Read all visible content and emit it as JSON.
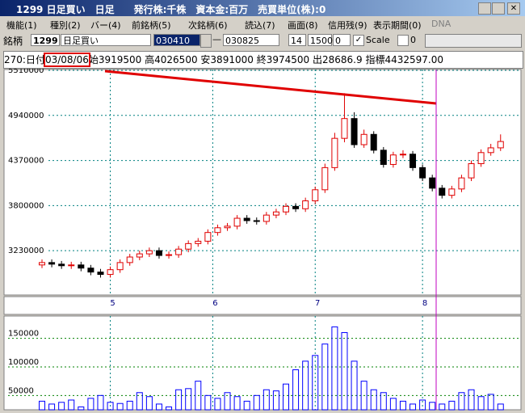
{
  "title": "1299 日足買い　日足　　発行株:千株　資本金:百万　売買単位(株):0",
  "menu": [
    "機能(1)",
    "種別(2)",
    "バー(4)",
    "前銘柄(5)",
    "次銘柄(6)",
    "読込(7)",
    "画面(8)",
    "信用残(9)",
    "表示期間(0)",
    "DNA"
  ],
  "toolbar": {
    "label": "銘柄",
    "code": "1299",
    "name": "日足買い",
    "from": "030410",
    "dash": "—",
    "to": "030825",
    "f1": "14",
    "f2": "1500",
    "f3": "0",
    "scale": "Scale",
    "f4": "0"
  },
  "info": [
    "270:日付",
    "03/08/06",
    "始3919500",
    "高4026500",
    "安3891000",
    "終3974500",
    "出28686.9",
    "指標4432597.00"
  ],
  "chart_data": [
    {
      "type": "candlestick",
      "open": [
        3050000,
        3080000,
        3060000,
        3040000,
        3050000,
        3010000,
        2960000,
        2930000,
        2990000,
        3080000,
        3150000,
        3190000,
        3230000,
        3170000,
        3180000,
        3250000,
        3320000,
        3350000,
        3460000,
        3520000,
        3540000,
        3640000,
        3610000,
        3600000,
        3680000,
        3720000,
        3790000,
        3760000,
        3860000,
        4000000,
        4280000,
        4650000,
        4900000,
        4570000,
        4700000,
        4500000,
        4320000,
        4440000,
        4450000,
        4280000,
        4150000,
        4020000,
        3930000,
        4010000,
        4150000,
        4330000,
        4470000,
        4530000
      ],
      "high": [
        3120000,
        3120000,
        3100000,
        3090000,
        3090000,
        3050000,
        3000000,
        3030000,
        3120000,
        3190000,
        3230000,
        3270000,
        3270000,
        3220000,
        3290000,
        3360000,
        3390000,
        3500000,
        3560000,
        3580000,
        3680000,
        3680000,
        3650000,
        3720000,
        3760000,
        3830000,
        3830000,
        3900000,
        4040000,
        4330000,
        4720000,
        5220000,
        4980000,
        4760000,
        4740000,
        4540000,
        4480000,
        4500000,
        4490000,
        4320000,
        4190000,
        4060000,
        4050000,
        4190000,
        4370000,
        4510000,
        4580000,
        4700000
      ],
      "low": [
        3010000,
        3020000,
        3000000,
        3000000,
        2970000,
        2920000,
        2890000,
        2890000,
        2950000,
        3040000,
        3110000,
        3150000,
        3130000,
        3130000,
        3140000,
        3210000,
        3280000,
        3310000,
        3420000,
        3480000,
        3500000,
        3570000,
        3560000,
        3560000,
        3640000,
        3680000,
        3720000,
        3720000,
        3820000,
        3960000,
        4240000,
        4600000,
        4530000,
        4530000,
        4460000,
        4280000,
        4280000,
        4400000,
        4240000,
        4110000,
        3980000,
        3890000,
        3890000,
        3970000,
        4110000,
        4290000,
        4430000,
        4490000
      ],
      "close": [
        3080000,
        3060000,
        3040000,
        3050000,
        3010000,
        2960000,
        2930000,
        2990000,
        3080000,
        3150000,
        3190000,
        3230000,
        3170000,
        3180000,
        3250000,
        3320000,
        3350000,
        3460000,
        3520000,
        3540000,
        3640000,
        3610000,
        3600000,
        3680000,
        3720000,
        3790000,
        3760000,
        3860000,
        4000000,
        4280000,
        4650000,
        4900000,
        4570000,
        4700000,
        4500000,
        4320000,
        4440000,
        4450000,
        4280000,
        4150000,
        4020000,
        3930000,
        4010000,
        4150000,
        4330000,
        4470000,
        4530000,
        4610000
      ],
      "up_color": "#e00000",
      "down_color": "#000000",
      "ylim": [
        2670000,
        5520000
      ],
      "yticks": [
        3230000,
        3800000,
        4370000,
        4940000,
        5510000
      ],
      "xticks": [
        {
          "value": 7,
          "label": "5"
        },
        {
          "value": 17.5,
          "label": "6"
        },
        {
          "value": 28,
          "label": "7"
        },
        {
          "value": 39,
          "label": "8"
        }
      ],
      "grid": true
    },
    {
      "type": "bar",
      "color": "#0000ff",
      "values": [
        40000,
        35000,
        38000,
        42000,
        30000,
        45000,
        50000,
        38000,
        36000,
        40000,
        55000,
        48000,
        35000,
        30000,
        60000,
        62000,
        75000,
        50000,
        45000,
        55000,
        48000,
        40000,
        50000,
        60000,
        58000,
        70000,
        95000,
        110000,
        120000,
        140000,
        170000,
        160000,
        110000,
        75000,
        60000,
        55000,
        45000,
        40000,
        35000,
        42000,
        38000,
        35000,
        40000,
        55000,
        60000,
        48000,
        52000,
        35000
      ],
      "ylim": [
        25000,
        189000
      ],
      "yticks": [
        50000,
        100000,
        150000
      ],
      "grid": true
    }
  ]
}
